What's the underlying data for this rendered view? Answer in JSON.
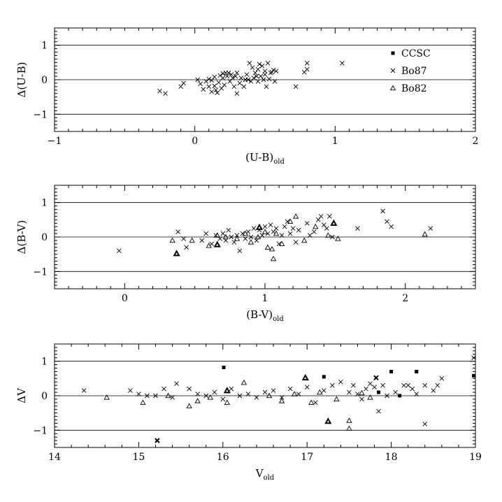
{
  "chart_data": [
    {
      "type": "scatter",
      "title": "",
      "xlabel": "(U-B)",
      "xlabel_sub": "old",
      "ylabel": "Δ(U-B)",
      "xlim": [
        -1,
        2
      ],
      "ylim": [
        -1.5,
        1.5
      ],
      "xticks": [
        -1,
        0,
        1,
        2
      ],
      "yticks": [
        -1,
        0,
        1
      ],
      "reference_lines": [
        -1,
        0,
        1
      ],
      "legend": {
        "placement": "right",
        "entries": [
          {
            "name": "CCSC",
            "marker": "square"
          },
          {
            "name": "Bo87",
            "marker": "cross"
          },
          {
            "name": "Bo82",
            "marker": "triangle"
          }
        ]
      },
      "series": [
        {
          "name": "Bo87",
          "marker": "cross",
          "points": [
            [
              -0.25,
              -0.33
            ],
            [
              -0.21,
              -0.4
            ],
            [
              -0.1,
              -0.2
            ],
            [
              -0.08,
              -0.1
            ],
            [
              0.02,
              0.0
            ],
            [
              0.04,
              -0.12
            ],
            [
              0.06,
              -0.28
            ],
            [
              0.08,
              -0.05
            ],
            [
              0.1,
              0.02
            ],
            [
              0.1,
              -0.2
            ],
            [
              0.12,
              -0.35
            ],
            [
              0.12,
              -0.02
            ],
            [
              0.14,
              0.08
            ],
            [
              0.14,
              -0.18
            ],
            [
              0.15,
              -0.3
            ],
            [
              0.16,
              -0.38
            ],
            [
              0.17,
              -0.08
            ],
            [
              0.18,
              0.12
            ],
            [
              0.19,
              -0.25
            ],
            [
              0.2,
              0.18
            ],
            [
              0.2,
              0.05
            ],
            [
              0.21,
              -0.15
            ],
            [
              0.22,
              0.2
            ],
            [
              0.23,
              0.1
            ],
            [
              0.24,
              0.2
            ],
            [
              0.25,
              -0.05
            ],
            [
              0.26,
              0.15
            ],
            [
              0.27,
              0.05
            ],
            [
              0.28,
              -0.2
            ],
            [
              0.29,
              0.1
            ],
            [
              0.3,
              0.2
            ],
            [
              0.3,
              -0.4
            ],
            [
              0.32,
              -0.1
            ],
            [
              0.33,
              0.05
            ],
            [
              0.35,
              -0.2
            ],
            [
              0.36,
              0.0
            ],
            [
              0.37,
              0.15
            ],
            [
              0.38,
              0.0
            ],
            [
              0.39,
              0.48
            ],
            [
              0.4,
              -0.05
            ],
            [
              0.41,
              0.35
            ],
            [
              0.42,
              0.05
            ],
            [
              0.43,
              0.2
            ],
            [
              0.44,
              0.1
            ],
            [
              0.45,
              0.3
            ],
            [
              0.45,
              -0.05
            ],
            [
              0.46,
              0.45
            ],
            [
              0.47,
              0.1
            ],
            [
              0.48,
              0.4
            ],
            [
              0.49,
              0.0
            ],
            [
              0.5,
              0.15
            ],
            [
              0.5,
              0.25
            ],
            [
              0.51,
              -0.2
            ],
            [
              0.52,
              0.48
            ],
            [
              0.53,
              0.02
            ],
            [
              0.54,
              0.2
            ],
            [
              0.55,
              0.22
            ],
            [
              0.56,
              0.28
            ],
            [
              0.57,
              -0.05
            ],
            [
              0.58,
              0.25
            ],
            [
              0.72,
              -0.2
            ],
            [
              0.78,
              0.22
            ],
            [
              0.8,
              0.48
            ],
            [
              0.8,
              0.3
            ],
            [
              1.05,
              0.48
            ]
          ]
        }
      ]
    },
    {
      "type": "scatter",
      "title": "",
      "xlabel": "(B-V)",
      "xlabel_sub": "old",
      "ylabel": "Δ(B-V)",
      "xlim": [
        -0.5,
        2.5
      ],
      "ylim": [
        -1.5,
        1.5
      ],
      "xticks": [
        0,
        1,
        2
      ],
      "yticks": [
        -1,
        0,
        1
      ],
      "reference_lines": [
        -1,
        0,
        1
      ],
      "series": [
        {
          "name": "Bo87",
          "marker": "cross",
          "points": [
            [
              -0.04,
              -0.4
            ],
            [
              0.38,
              0.15
            ],
            [
              0.42,
              -0.05
            ],
            [
              0.44,
              -0.3
            ],
            [
              0.55,
              -0.1
            ],
            [
              0.58,
              0.1
            ],
            [
              0.62,
              -0.2
            ],
            [
              0.65,
              0.05
            ],
            [
              0.68,
              -0.05
            ],
            [
              0.7,
              0.1
            ],
            [
              0.72,
              -0.1
            ],
            [
              0.74,
              0.2
            ],
            [
              0.76,
              0.0
            ],
            [
              0.78,
              -0.15
            ],
            [
              0.8,
              0.05
            ],
            [
              0.82,
              -0.4
            ],
            [
              0.84,
              0.1
            ],
            [
              0.86,
              -0.05
            ],
            [
              0.88,
              0.15
            ],
            [
              0.9,
              0.0
            ],
            [
              0.92,
              0.25
            ],
            [
              0.94,
              -0.1
            ],
            [
              0.96,
              0.2
            ],
            [
              0.98,
              0.05
            ],
            [
              1.0,
              0.3
            ],
            [
              1.02,
              0.1
            ],
            [
              1.04,
              0.35
            ],
            [
              1.06,
              0.15
            ],
            [
              1.08,
              0.25
            ],
            [
              1.1,
              -0.2
            ],
            [
              1.12,
              0.05
            ],
            [
              1.14,
              0.3
            ],
            [
              1.16,
              0.45
            ],
            [
              1.18,
              0.1
            ],
            [
              1.2,
              0.25
            ],
            [
              1.22,
              -0.15
            ],
            [
              1.24,
              0.2
            ],
            [
              1.3,
              0.4
            ],
            [
              1.32,
              0.05
            ],
            [
              1.35,
              0.15
            ],
            [
              1.38,
              0.5
            ],
            [
              1.4,
              0.6
            ],
            [
              1.42,
              0.35
            ],
            [
              1.44,
              0.25
            ],
            [
              1.46,
              0.6
            ],
            [
              1.48,
              0.0
            ],
            [
              1.66,
              0.25
            ],
            [
              1.84,
              0.75
            ],
            [
              1.87,
              0.45
            ],
            [
              1.9,
              0.3
            ],
            [
              2.18,
              0.25
            ]
          ]
        },
        {
          "name": "Bo82",
          "marker": "triangle",
          "points": [
            [
              0.34,
              -0.1
            ],
            [
              0.48,
              -0.1
            ],
            [
              0.6,
              -0.25
            ],
            [
              0.66,
              0.05
            ],
            [
              0.72,
              0.0
            ],
            [
              0.8,
              -0.05
            ],
            [
              0.86,
              0.1
            ],
            [
              0.9,
              -0.15
            ],
            [
              0.95,
              0.0
            ],
            [
              1.0,
              0.15
            ],
            [
              1.02,
              -0.3
            ],
            [
              1.05,
              -0.35
            ],
            [
              1.06,
              -0.63
            ],
            [
              1.08,
              0.1
            ],
            [
              1.12,
              -0.2
            ],
            [
              1.18,
              0.45
            ],
            [
              1.22,
              0.6
            ],
            [
              1.28,
              -0.1
            ],
            [
              1.36,
              0.3
            ],
            [
              1.45,
              0.05
            ],
            [
              1.52,
              -0.05
            ],
            [
              2.14,
              0.08
            ]
          ]
        },
        {
          "name": "Bo82 (bold)",
          "marker": "triangle-bold",
          "points": [
            [
              0.37,
              -0.48
            ],
            [
              0.66,
              -0.22
            ],
            [
              0.96,
              0.28
            ],
            [
              1.49,
              0.4
            ]
          ]
        }
      ]
    },
    {
      "type": "scatter",
      "title": "",
      "xlabel": "V",
      "xlabel_sub": "old",
      "ylabel": "ΔV",
      "xlim": [
        14,
        19
      ],
      "ylim": [
        -1.5,
        1.5
      ],
      "xticks": [
        14,
        15,
        16,
        17,
        18,
        19
      ],
      "yticks": [
        -1,
        0,
        1
      ],
      "reference_lines": [
        -1,
        0,
        1
      ],
      "series": [
        {
          "name": "CCSC",
          "marker": "square",
          "points": [
            [
              16.01,
              0.82
            ],
            [
              17.2,
              0.55
            ],
            [
              17.85,
              0.1
            ],
            [
              18.0,
              0.7
            ],
            [
              18.1,
              0.0
            ],
            [
              18.3,
              0.7
            ],
            [
              18.98,
              0.58
            ]
          ]
        },
        {
          "name": "Bo87",
          "marker": "cross",
          "points": [
            [
              14.35,
              0.15
            ],
            [
              14.9,
              0.15
            ],
            [
              15.0,
              0.05
            ],
            [
              15.1,
              0.0
            ],
            [
              15.2,
              0.0
            ],
            [
              15.3,
              0.2
            ],
            [
              15.4,
              -0.05
            ],
            [
              15.45,
              0.35
            ],
            [
              15.6,
              0.2
            ],
            [
              15.7,
              0.05
            ],
            [
              15.8,
              0.0
            ],
            [
              15.9,
              0.1
            ],
            [
              16.0,
              -0.1
            ],
            [
              16.1,
              0.2
            ],
            [
              16.2,
              0.0
            ],
            [
              16.3,
              0.05
            ],
            [
              16.4,
              -0.05
            ],
            [
              16.5,
              0.1
            ],
            [
              16.6,
              0.15
            ],
            [
              16.7,
              -0.05
            ],
            [
              16.8,
              0.2
            ],
            [
              16.9,
              0.05
            ],
            [
              17.0,
              0.25
            ],
            [
              17.1,
              -0.2
            ],
            [
              17.2,
              0.15
            ],
            [
              17.3,
              0.3
            ],
            [
              17.4,
              0.4
            ],
            [
              17.5,
              0.1
            ],
            [
              17.55,
              0.3
            ],
            [
              17.6,
              0.05
            ],
            [
              17.65,
              -0.1
            ],
            [
              17.7,
              0.2
            ],
            [
              17.75,
              0.35
            ],
            [
              17.8,
              0.25
            ],
            [
              17.82,
              0.52
            ],
            [
              17.85,
              -0.45
            ],
            [
              17.9,
              0.3
            ],
            [
              17.95,
              0.0
            ],
            [
              18.05,
              0.1
            ],
            [
              18.15,
              0.3
            ],
            [
              18.2,
              0.3
            ],
            [
              18.25,
              0.2
            ],
            [
              18.3,
              0.05
            ],
            [
              18.4,
              0.3
            ],
            [
              18.4,
              -0.82
            ],
            [
              18.5,
              0.15
            ],
            [
              18.55,
              0.3
            ],
            [
              18.6,
              0.5
            ],
            [
              18.98,
              1.1
            ]
          ]
        },
        {
          "name": "Bo82",
          "marker": "triangle",
          "points": [
            [
              14.62,
              -0.05
            ],
            [
              15.05,
              -0.2
            ],
            [
              15.35,
              0.0
            ],
            [
              15.6,
              -0.3
            ],
            [
              15.7,
              -0.15
            ],
            [
              15.85,
              -0.05
            ],
            [
              16.05,
              -0.2
            ],
            [
              16.25,
              0.38
            ],
            [
              16.55,
              0.0
            ],
            [
              16.7,
              -0.15
            ],
            [
              16.85,
              0.05
            ],
            [
              17.05,
              -0.2
            ],
            [
              17.15,
              0.1
            ],
            [
              17.35,
              -0.1
            ],
            [
              17.5,
              -0.72
            ],
            [
              17.5,
              -0.95
            ],
            [
              17.65,
              0.08
            ],
            [
              17.75,
              -0.05
            ]
          ]
        },
        {
          "name": "Bo82 (bold)",
          "marker": "triangle-bold",
          "points": [
            [
              16.05,
              0.15
            ],
            [
              16.98,
              0.52
            ],
            [
              17.25,
              -0.74
            ]
          ]
        },
        {
          "name": "Bo87 (bold)",
          "marker": "cross-bold",
          "points": [
            [
              15.22,
              -1.3
            ],
            [
              17.82,
              0.52
            ]
          ]
        }
      ]
    }
  ]
}
